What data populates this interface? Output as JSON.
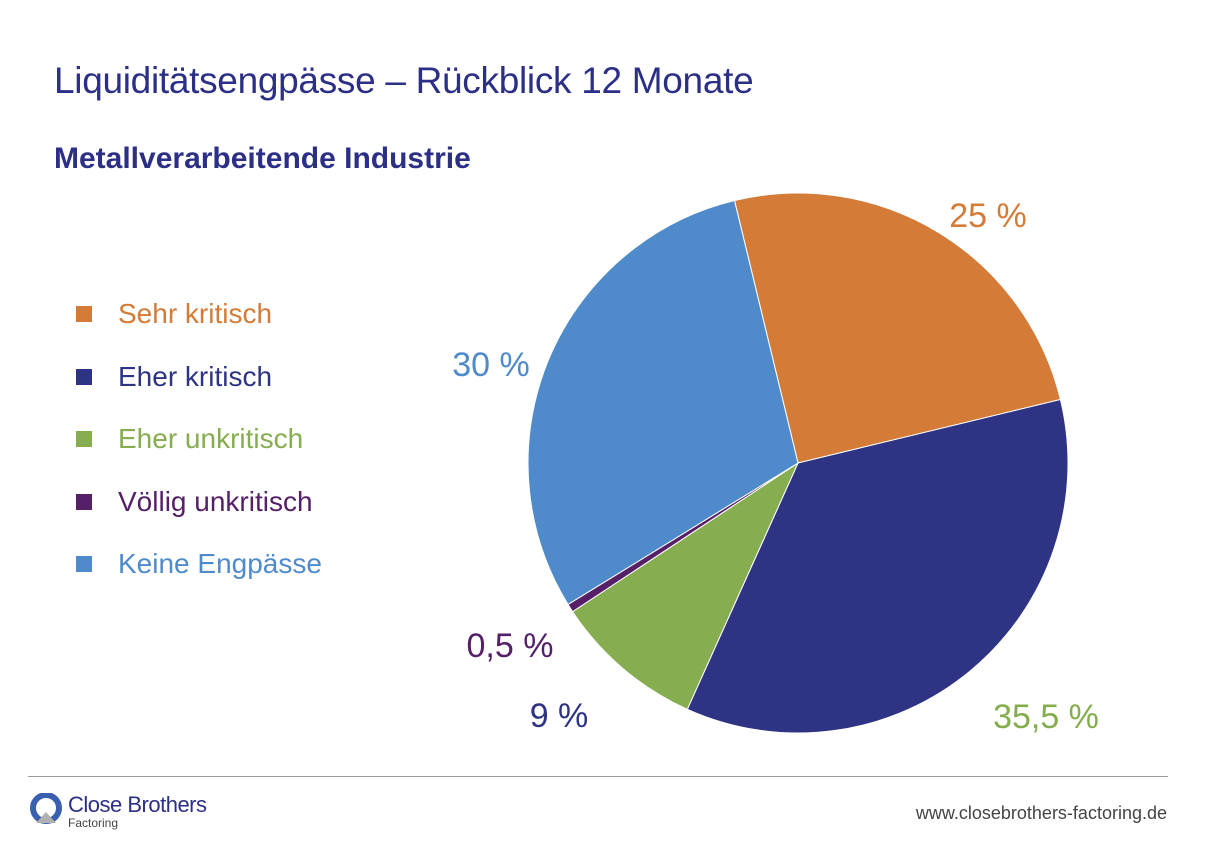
{
  "chart_data": {
    "type": "pie",
    "title": "Liquiditätsengpässe – Rückblick 12 Monate",
    "subtitle": "Metallverarbeitende Industrie",
    "legend_position": "left",
    "slices": [
      {
        "name": "Sehr kritisch",
        "value": 25,
        "label": "25 %",
        "color": "#d47b38",
        "label_color": "#d47b38"
      },
      {
        "name": "Eher kritisch",
        "value": 35.5,
        "label": "35,5 %",
        "color": "#2e3384",
        "label_color": "#84ad4e"
      },
      {
        "name": "Eher unkritisch",
        "value": 9,
        "label": "9 %",
        "color": "#86ad50",
        "label_color": "#2e3384"
      },
      {
        "name": "Völlig unkritisch",
        "value": 0.5,
        "label": "0,5 %",
        "color": "#552068",
        "label_color": "#552068"
      },
      {
        "name": "Keine Engpässe",
        "value": 30,
        "label": "30 %",
        "color": "#4f8bcb",
        "label_color": "#4f8bcb"
      }
    ]
  },
  "footer": {
    "logo_name": "Close Brothers",
    "logo_sub": "Factoring",
    "url": "www.closebrothers-factoring.de"
  }
}
